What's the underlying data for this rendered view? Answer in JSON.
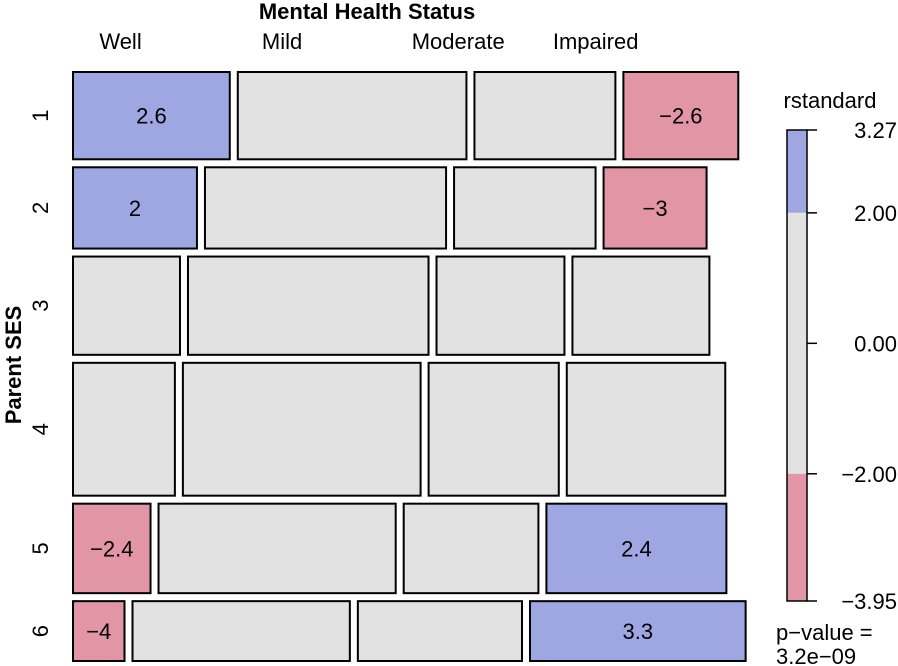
{
  "chart_data": {
    "type": "mosaic",
    "title": "Mental Health Status",
    "ylabel": "Parent SES",
    "columns": [
      "Well",
      "Mild",
      "Moderate",
      "Impaired"
    ],
    "rows": [
      "1",
      "2",
      "3",
      "4",
      "5",
      "6"
    ],
    "row_proportions": [
      0.159,
      0.148,
      0.179,
      0.242,
      0.163,
      0.109
    ],
    "cell_proportions": [
      [
        0.277,
        0.404,
        0.249,
        0.203
      ],
      [
        0.219,
        0.426,
        0.25,
        0.182
      ],
      [
        0.189,
        0.425,
        0.226,
        0.242
      ],
      [
        0.18,
        0.42,
        0.23,
        0.28
      ],
      [
        0.137,
        0.419,
        0.238,
        0.318
      ],
      [
        0.091,
        0.384,
        0.29,
        0.381
      ]
    ],
    "residual_labels": [
      [
        "2.6",
        "",
        "",
        "−2.6"
      ],
      [
        "2",
        "",
        "",
        "−3"
      ],
      [
        "",
        "",
        "",
        ""
      ],
      [
        "",
        "",
        "",
        ""
      ],
      [
        "−2.4",
        "",
        "",
        "2.4"
      ],
      [
        "−4",
        "",
        "",
        "3.3"
      ]
    ],
    "legend": {
      "title": "rstandard",
      "ticks": [
        "3.27",
        "2.00",
        "0.00",
        "−2.00",
        "−3.95"
      ],
      "range": [
        -3.95,
        3.27
      ],
      "tick_values": [
        3.27,
        2.0,
        0.0,
        -2.0,
        -3.95
      ],
      "cutoffs": [
        -2,
        2
      ],
      "pvalue_label": "p−value =",
      "pvalue": "3.2e−09"
    },
    "colors": {
      "positive": "#9ea7e1",
      "neutral": "#e2e2e2",
      "negative": "#e295a5",
      "border": "#000000"
    }
  }
}
